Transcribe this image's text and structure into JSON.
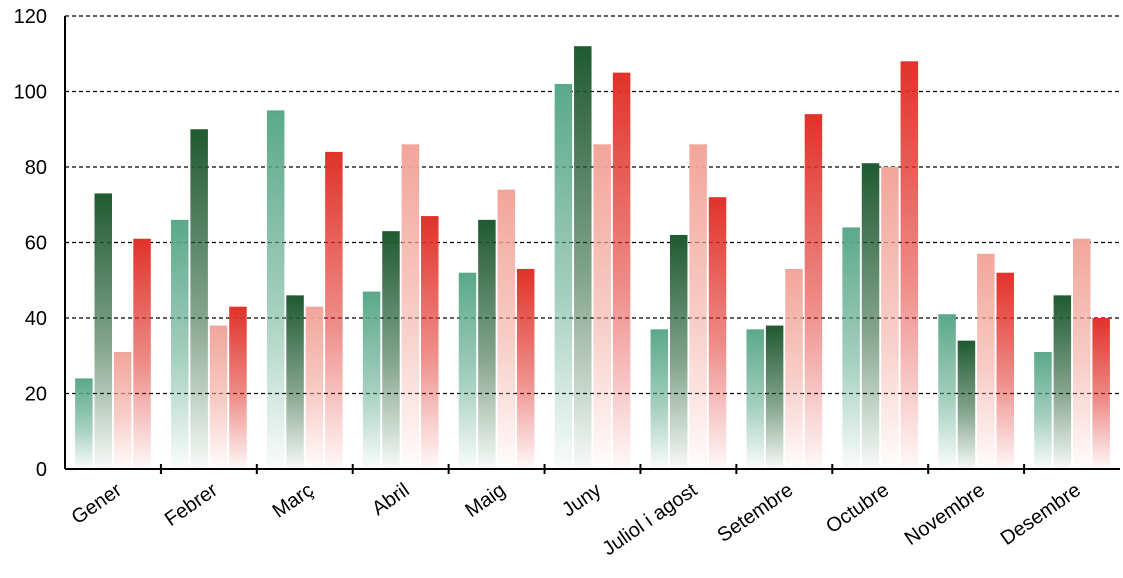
{
  "chart_data": {
    "type": "bar",
    "categories": [
      "Gener",
      "Febrer",
      "Març",
      "Abril",
      "Maig",
      "Juny",
      "Juliol i agost",
      "Setembre",
      "Octubre",
      "Novembre",
      "Desembre"
    ],
    "series": [
      {
        "values": [
          24,
          66,
          95,
          47,
          52,
          102,
          37,
          37,
          64,
          41,
          31
        ],
        "color": "#5aa88a"
      },
      {
        "values": [
          73,
          90,
          46,
          63,
          66,
          112,
          62,
          38,
          81,
          34,
          46
        ],
        "color": "#1f5a30"
      },
      {
        "values": [
          31,
          38,
          43,
          86,
          74,
          86,
          86,
          53,
          80,
          57,
          61
        ],
        "color": "#f2a59a"
      },
      {
        "values": [
          61,
          43,
          84,
          67,
          53,
          105,
          72,
          94,
          108,
          52,
          40
        ],
        "color": "#e0322a"
      }
    ],
    "yticks": [
      "0",
      "20",
      "40",
      "60",
      "80",
      "100",
      "120"
    ],
    "ylim": [
      0,
      120
    ],
    "grid": true,
    "title": "",
    "xlabel": "",
    "ylabel": ""
  }
}
